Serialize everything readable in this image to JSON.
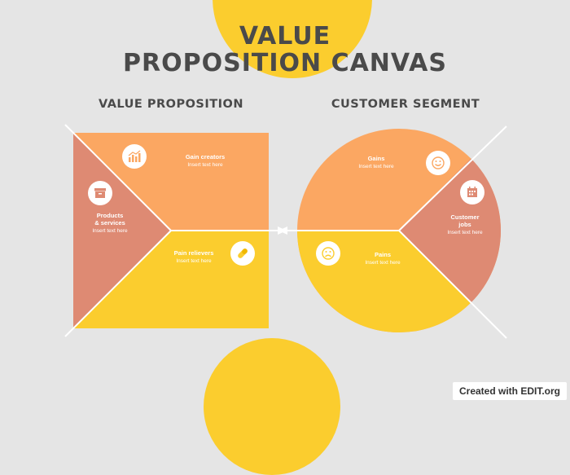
{
  "title": {
    "line1": "VALUE",
    "line2": "PROPOSITION CANVAS"
  },
  "headings": {
    "left": "VALUE PROPOSITION",
    "right": "CUSTOMER SEGMENT"
  },
  "value_proposition": {
    "gain_creators": {
      "title": "Gain creators",
      "text": "Insert text here",
      "icon": "chart-icon"
    },
    "products_services": {
      "title_line1": "Products",
      "title_line2": "& services",
      "text": "Insert text here",
      "icon": "box-icon"
    },
    "pain_relievers": {
      "title": "Pain relievers",
      "text": "Insert text here",
      "icon": "pill-icon"
    }
  },
  "customer_segment": {
    "gains": {
      "title": "Gains",
      "text": "Insert text here",
      "icon": "smiley-icon"
    },
    "customer_jobs": {
      "title_line1": "Customer",
      "title_line2": "jobs",
      "text": "Insert text here",
      "icon": "calendar-icon"
    },
    "pains": {
      "title": "Pains",
      "text": "Insert text here",
      "icon": "sad-face-icon"
    }
  },
  "colors": {
    "orange": "#fba762",
    "salmon": "#de8a73",
    "yellow": "#fbcd2e",
    "background": "#e5e5e5",
    "title": "#4a4a4a"
  },
  "footer": "Created with EDIT.org"
}
